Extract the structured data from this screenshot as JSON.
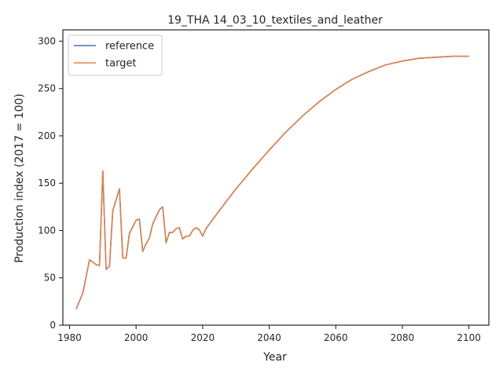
{
  "chart_data": {
    "type": "line",
    "title": "19_THA 14_03_10_textiles_and_leather",
    "xlabel": "Year",
    "ylabel": "Production index (2017 = 100)",
    "xlim": [
      1978,
      2106
    ],
    "ylim": [
      0,
      312
    ],
    "xticks": [
      1980,
      2000,
      2020,
      2040,
      2060,
      2080,
      2100
    ],
    "yticks": [
      0,
      50,
      100,
      150,
      200,
      250,
      300
    ],
    "grid": false,
    "legend_position": "top-left",
    "series": [
      {
        "name": "reference",
        "color": "#4c72b0",
        "points": [
          [
            1982,
            17
          ],
          [
            1984,
            34
          ],
          [
            1986,
            69
          ],
          [
            1988,
            64
          ],
          [
            1989,
            63
          ],
          [
            1990,
            163
          ],
          [
            1991,
            59
          ],
          [
            1992,
            62
          ],
          [
            1993,
            121
          ],
          [
            1995,
            144
          ],
          [
            1996,
            71
          ],
          [
            1997,
            71
          ],
          [
            1998,
            97
          ],
          [
            2000,
            111
          ],
          [
            2001,
            112
          ],
          [
            2002,
            78
          ],
          [
            2003,
            86
          ],
          [
            2004,
            92
          ],
          [
            2005,
            107
          ],
          [
            2007,
            122
          ],
          [
            2008,
            125
          ],
          [
            2009,
            87
          ],
          [
            2010,
            98
          ],
          [
            2011,
            98
          ],
          [
            2012,
            102
          ],
          [
            2013,
            103
          ],
          [
            2014,
            91
          ],
          [
            2015,
            94
          ],
          [
            2016,
            94
          ],
          [
            2017,
            100
          ],
          [
            2018,
            103
          ],
          [
            2019,
            101
          ],
          [
            2020,
            94
          ],
          [
            2021,
            102
          ],
          [
            2025,
            121
          ],
          [
            2030,
            144
          ],
          [
            2035,
            165
          ],
          [
            2040,
            185
          ],
          [
            2045,
            204
          ],
          [
            2050,
            221
          ],
          [
            2055,
            236
          ],
          [
            2060,
            249
          ],
          [
            2065,
            260
          ],
          [
            2070,
            268
          ],
          [
            2075,
            275
          ],
          [
            2080,
            279
          ],
          [
            2085,
            282
          ],
          [
            2090,
            283
          ],
          [
            2095,
            284
          ],
          [
            2100,
            284
          ]
        ]
      },
      {
        "name": "target",
        "color": "#dd8452",
        "points": [
          [
            1982,
            17
          ],
          [
            1984,
            34
          ],
          [
            1986,
            69
          ],
          [
            1988,
            64
          ],
          [
            1989,
            63
          ],
          [
            1990,
            163
          ],
          [
            1991,
            59
          ],
          [
            1992,
            62
          ],
          [
            1993,
            121
          ],
          [
            1995,
            144
          ],
          [
            1996,
            71
          ],
          [
            1997,
            71
          ],
          [
            1998,
            97
          ],
          [
            2000,
            111
          ],
          [
            2001,
            112
          ],
          [
            2002,
            78
          ],
          [
            2003,
            86
          ],
          [
            2004,
            92
          ],
          [
            2005,
            107
          ],
          [
            2007,
            122
          ],
          [
            2008,
            125
          ],
          [
            2009,
            87
          ],
          [
            2010,
            98
          ],
          [
            2011,
            98
          ],
          [
            2012,
            102
          ],
          [
            2013,
            103
          ],
          [
            2014,
            91
          ],
          [
            2015,
            94
          ],
          [
            2016,
            94
          ],
          [
            2017,
            100
          ],
          [
            2018,
            103
          ],
          [
            2019,
            101
          ],
          [
            2020,
            94
          ],
          [
            2021,
            102
          ],
          [
            2025,
            121
          ],
          [
            2030,
            144
          ],
          [
            2035,
            165
          ],
          [
            2040,
            185
          ],
          [
            2045,
            204
          ],
          [
            2050,
            221
          ],
          [
            2055,
            236
          ],
          [
            2060,
            249
          ],
          [
            2065,
            260
          ],
          [
            2070,
            268
          ],
          [
            2075,
            275
          ],
          [
            2080,
            279
          ],
          [
            2085,
            282
          ],
          [
            2090,
            283
          ],
          [
            2095,
            284
          ],
          [
            2100,
            284
          ]
        ]
      }
    ]
  }
}
